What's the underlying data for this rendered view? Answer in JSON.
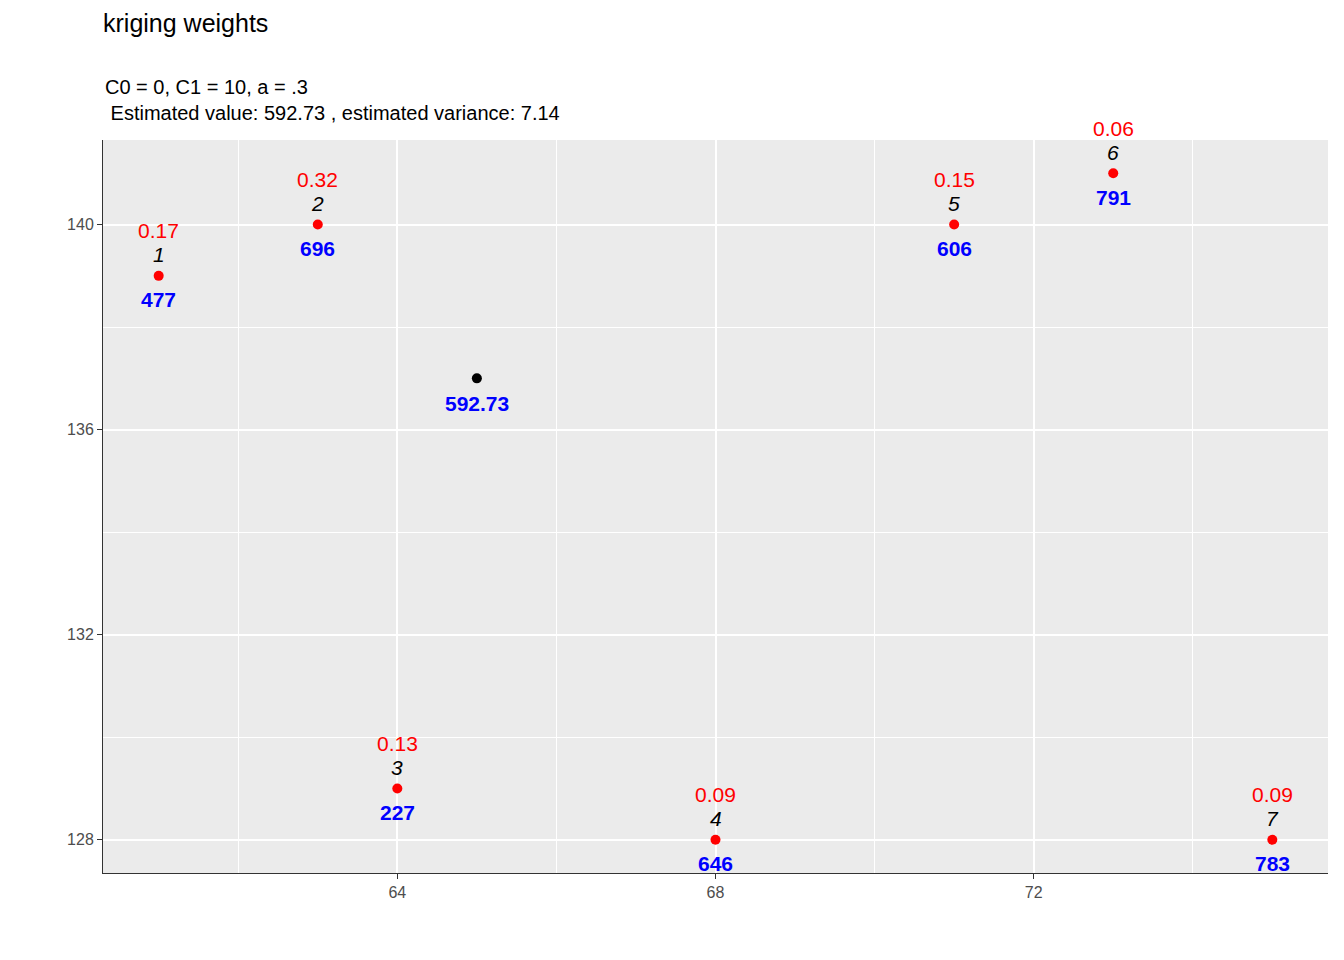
{
  "chart_data": {
    "type": "scatter",
    "title": "kriging weights",
    "subtitle": [
      "C0 = 0, C1 = 10, a = .3",
      " Estimated value: 592.73 , estimated variance: 7.14"
    ],
    "x": [
      61,
      63,
      64,
      68,
      71,
      73,
      75
    ],
    "values": [
      139,
      140,
      129,
      128,
      140,
      141,
      128
    ],
    "ids": [
      "1",
      "2",
      "3",
      "4",
      "5",
      "6",
      "7"
    ],
    "weights": [
      0.17,
      0.32,
      0.13,
      0.09,
      0.15,
      0.06,
      0.09
    ],
    "sample_values": [
      477,
      696,
      227,
      646,
      606,
      791,
      783
    ],
    "color": "#ff0000",
    "target": {
      "x": 65,
      "y": 137,
      "value": 592.73,
      "color": "#000000"
    },
    "xlim": [
      60.3,
      75.7
    ],
    "xticks": [
      64,
      68,
      72
    ],
    "ylim": [
      127.35,
      141.65
    ],
    "yticks": [
      128,
      132,
      136,
      140
    ],
    "grid": true
  }
}
